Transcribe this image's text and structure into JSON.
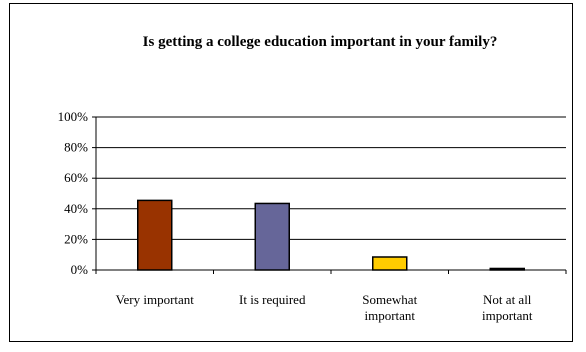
{
  "chart_data": {
    "type": "bar",
    "title": "Is getting a college education important in your family?",
    "categories": [
      [
        "Very important"
      ],
      [
        "It is required"
      ],
      [
        "Somewhat",
        "important"
      ],
      [
        "Not at all",
        "important"
      ]
    ],
    "values": [
      45.5,
      43.5,
      8.5,
      1.0
    ],
    "colors": [
      "#993300",
      "#666699",
      "#FFCC00",
      "#000080"
    ],
    "yticks": [
      "0%",
      "20%",
      "40%",
      "60%",
      "80%",
      "100%"
    ],
    "ylim": [
      0,
      100
    ],
    "grid": true,
    "xlabel": "",
    "ylabel": ""
  }
}
